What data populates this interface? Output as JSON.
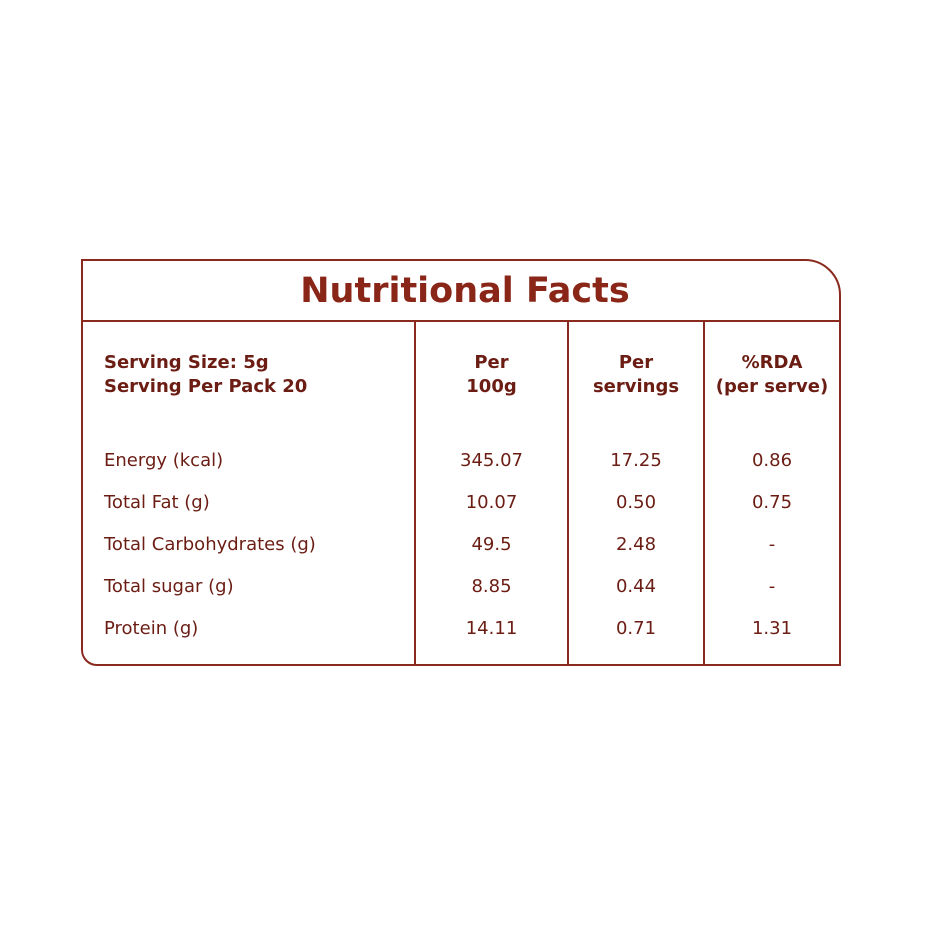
{
  "title": "Nutritional Facts",
  "table": {
    "header": [
      [
        "Serving Size: 5g",
        "Serving Per Pack 20"
      ],
      [
        "Per",
        "100g"
      ],
      [
        "Per",
        "servings"
      ],
      [
        "%RDA",
        "(per serve)"
      ]
    ],
    "rows": [
      [
        "Energy (kcal)",
        "345.07",
        "17.25",
        "0.86"
      ],
      [
        "Total Fat (g)",
        "10.07",
        "0.50",
        "0.75"
      ],
      [
        "Total Carbohydrates  (g)",
        "49.5",
        "2.48",
        "-"
      ],
      [
        "Total sugar (g)",
        "8.85",
        "0.44",
        "-"
      ],
      [
        "Protein (g)",
        "14.11",
        "0.71",
        "1.31"
      ]
    ]
  }
}
